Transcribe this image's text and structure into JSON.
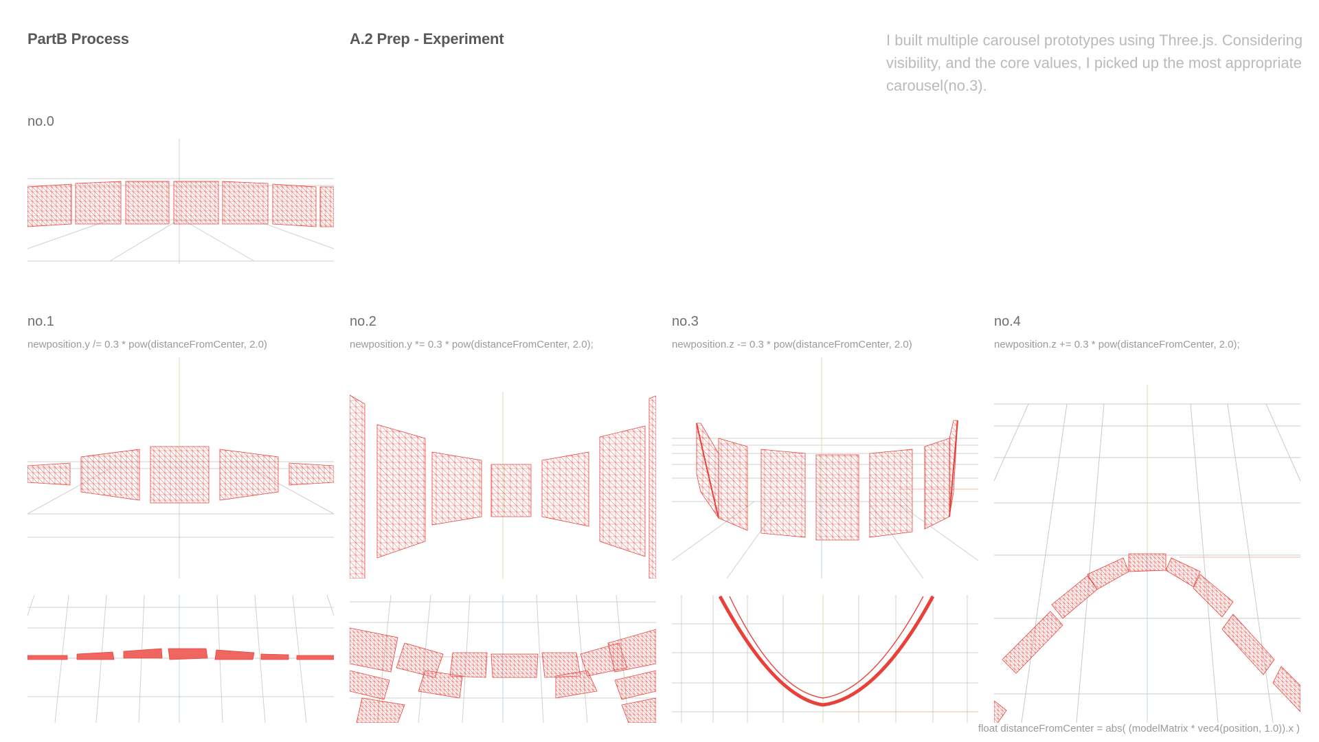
{
  "header": {
    "section_title": "PartB Process",
    "subsection_title": "A.2 Prep - Experiment",
    "description": "I built multiple carousel prototypes using Three.js. Considering visibility, and the core values, I picked up the most appropriate carousel(no.3)."
  },
  "prototypes": [
    {
      "label": "no.0",
      "code": ""
    },
    {
      "label": "no.1",
      "code": "newposition.y /= 0.3 * pow(distanceFromCenter, 2.0)"
    },
    {
      "label": "no.2",
      "code": "newposition.y *= 0.3 * pow(distanceFromCenter, 2.0);"
    },
    {
      "label": "no.3",
      "code": "newposition.z -= 0.3 * pow(distanceFromCenter, 2.0)"
    },
    {
      "label": "no.4",
      "code": "newposition.z += 0.3 * pow(distanceFromCenter, 2.0);"
    }
  ],
  "footer": {
    "formula": "float distanceFromCenter = abs( (modelMatrix * vec4(position, 1.0)).x )"
  },
  "colors": {
    "mesh": "#e8413a",
    "grid": "#c8c8c8",
    "axis_green": "#9ccc65",
    "axis_blue": "#64a0dc",
    "axis_red": "#f08070"
  }
}
